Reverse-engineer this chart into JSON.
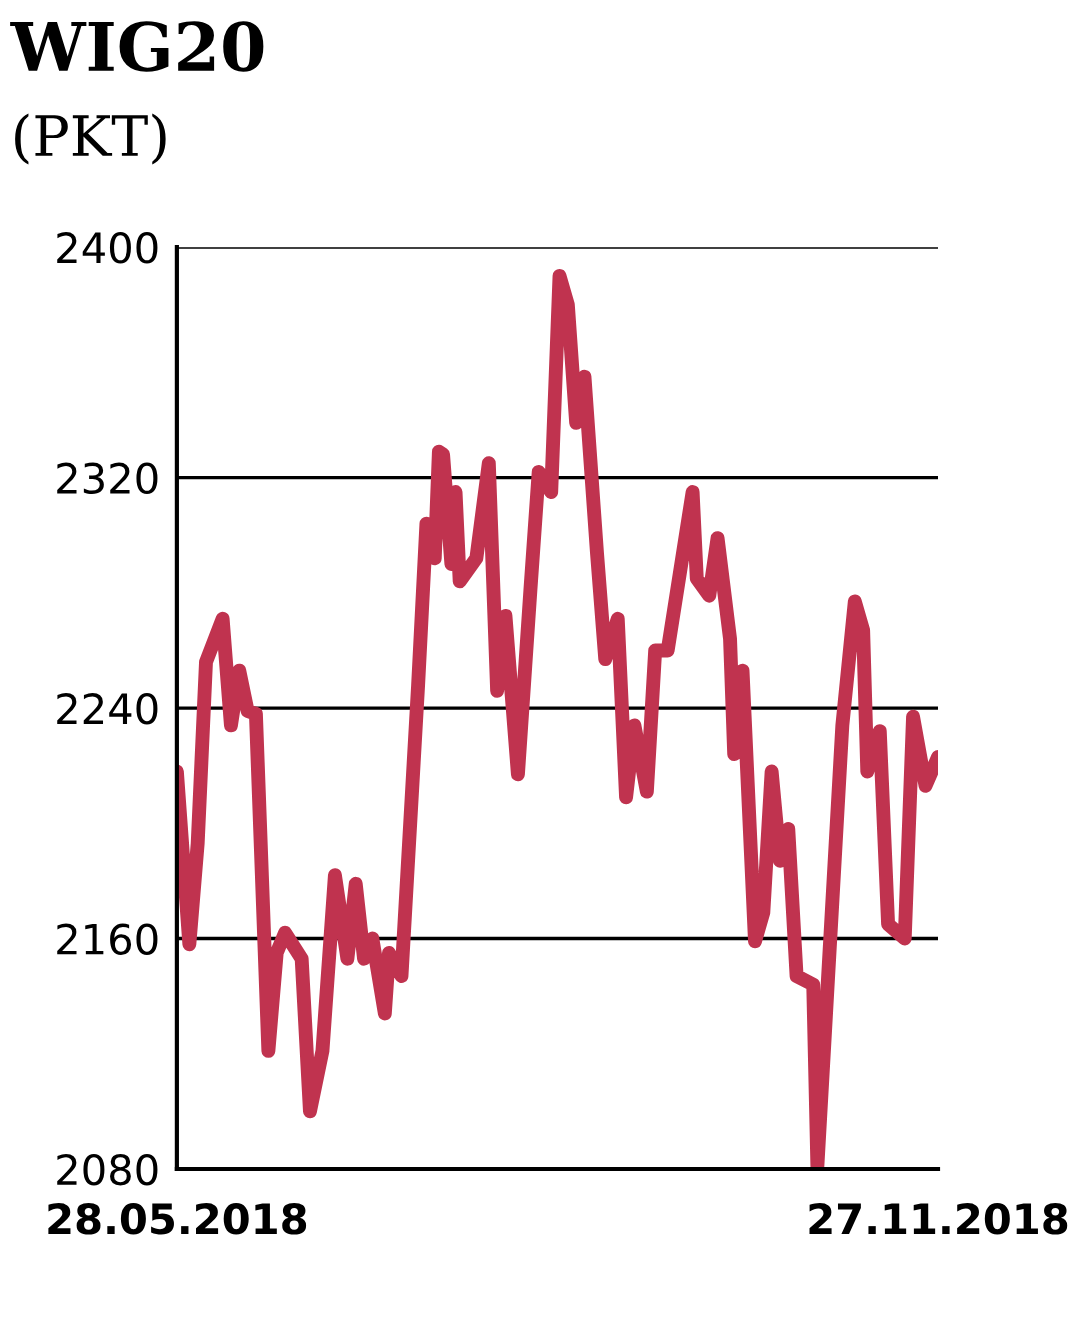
{
  "chart_data": {
    "type": "line",
    "title": "WIG20",
    "subtitle": "(PKT)",
    "x": [
      "2018-05-28",
      "2018-05-31",
      "2018-06-02",
      "2018-06-04",
      "2018-06-08",
      "2018-06-10",
      "2018-06-12",
      "2018-06-14",
      "2018-06-16",
      "2018-06-19",
      "2018-06-21",
      "2018-06-23",
      "2018-06-27",
      "2018-06-29",
      "2018-07-02",
      "2018-07-05",
      "2018-07-08",
      "2018-07-10",
      "2018-07-12",
      "2018-07-14",
      "2018-07-17",
      "2018-07-18",
      "2018-07-21",
      "2018-07-25",
      "2018-07-27",
      "2018-07-29",
      "2018-07-30",
      "2018-07-31",
      "2018-08-02",
      "2018-08-03",
      "2018-08-04",
      "2018-08-08",
      "2018-08-11",
      "2018-08-13",
      "2018-08-15",
      "2018-08-18",
      "2018-08-21",
      "2018-08-23",
      "2018-08-26",
      "2018-08-28",
      "2018-08-30",
      "2018-09-01",
      "2018-09-03",
      "2018-09-06",
      "2018-09-08",
      "2018-09-11",
      "2018-09-13",
      "2018-09-15",
      "2018-09-18",
      "2018-09-20",
      "2018-09-23",
      "2018-09-29",
      "2018-09-30",
      "2018-10-03",
      "2018-10-05",
      "2018-10-08",
      "2018-10-09",
      "2018-10-11",
      "2018-10-14",
      "2018-10-16",
      "2018-10-18",
      "2018-10-20",
      "2018-10-22",
      "2018-10-24",
      "2018-10-28",
      "2018-10-29",
      "2018-11-04",
      "2018-11-07",
      "2018-11-09",
      "2018-11-10",
      "2018-11-13",
      "2018-11-15",
      "2018-11-19",
      "2018-11-21",
      "2018-11-24",
      "2018-11-27"
    ],
    "series": [
      {
        "color": "#c0334f",
        "values": [
          2218,
          2158,
          2193,
          2256,
          2271,
          2234,
          2253,
          2239,
          2238,
          2121,
          2155,
          2162,
          2153,
          2100,
          2121,
          2182,
          2153,
          2179,
          2153,
          2160,
          2134,
          2155,
          2147,
          2248,
          2304,
          2292,
          2329,
          2328,
          2290,
          2315,
          2284,
          2292,
          2325,
          2246,
          2272,
          2217,
          2281,
          2322,
          2315,
          2390,
          2380,
          2339,
          2355,
          2294,
          2257,
          2271,
          2209,
          2234,
          2211,
          2260,
          2260,
          2315,
          2285,
          2279,
          2299,
          2264,
          2224,
          2253,
          2159,
          2169,
          2218,
          2187,
          2198,
          2147,
          2144,
          2081,
          2234,
          2277,
          2267,
          2218,
          2232,
          2165,
          2160,
          2237,
          2213,
          2223
        ]
      }
    ],
    "xlim": [
      "2018-05-28",
      "2018-11-27"
    ],
    "xticks": [
      {
        "value": "2018-05-28",
        "label": "28.05.2018"
      },
      {
        "value": "2018-11-27",
        "label": "27.11.2018"
      }
    ],
    "ylim": [
      2080,
      2400
    ],
    "yticks": [
      2080,
      2160,
      2240,
      2320,
      2400
    ],
    "grid": "y",
    "legend": false,
    "marker": "none",
    "line_style": "solid"
  }
}
